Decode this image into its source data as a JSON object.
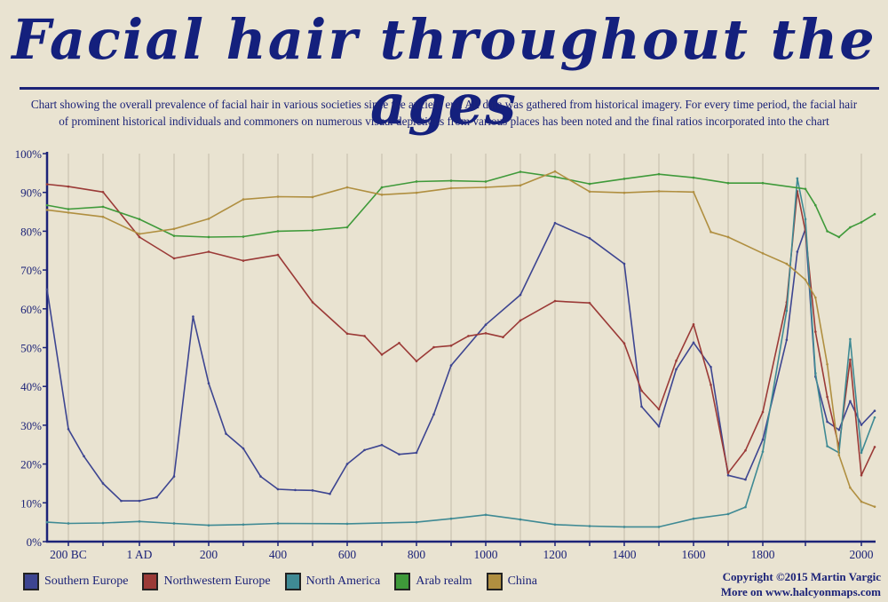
{
  "chart_data": {
    "type": "line",
    "title": "Facial hair throughout the ages",
    "subtitle": "Chart showing the overall prevalence of facial hair in various societies since the ancient era. All data was gathered from historical imagery. For every time period, the facial hair of prominent historical individuals and commoners on numerous visual depictions from various places has been noted and the final ratios incorporated into the chart",
    "xlabel": "",
    "ylabel": "",
    "ylim": [
      0,
      100
    ],
    "xlim": [
      -250,
      2020
    ],
    "grid": true,
    "legend_position": "bottom-left",
    "y_ticks": [
      "0%",
      "10%",
      "20%",
      "30%",
      "40%",
      "50%",
      "60%",
      "70%",
      "80%",
      "90%",
      "100%"
    ],
    "x_ticks": [
      {
        "value": -200,
        "label": "200 BC"
      },
      {
        "value": 0,
        "label": "1 AD"
      },
      {
        "value": 200,
        "label": "200"
      },
      {
        "value": 400,
        "label": "400"
      },
      {
        "value": 600,
        "label": "600"
      },
      {
        "value": 800,
        "label": "800"
      },
      {
        "value": 1000,
        "label": "1000"
      },
      {
        "value": 1200,
        "label": "1200"
      },
      {
        "value": 1400,
        "label": "1400"
      },
      {
        "value": 1600,
        "label": "1600"
      },
      {
        "value": 1800,
        "label": "1800"
      },
      {
        "value": 2000,
        "label": "2000"
      }
    ],
    "series": [
      {
        "name": "Southern Europe",
        "color": "#3d4591",
        "x": [
          -250,
          -200,
          -155,
          -100,
          -50,
          0,
          50,
          100,
          155,
          200,
          250,
          300,
          350,
          400,
          450,
          500,
          550,
          600,
          650,
          700,
          750,
          800,
          850,
          900,
          1000,
          1100,
          1200,
          1300,
          1400,
          1450,
          1500,
          1550,
          1600,
          1650,
          1700,
          1750,
          1800,
          1856,
          1881,
          1900,
          1918,
          1939,
          1960,
          1980,
          2000,
          2020
        ],
        "y": [
          65,
          29,
          22,
          15,
          10.5,
          10.5,
          11.4,
          16.8,
          58,
          40.8,
          27.8,
          24,
          16.8,
          13.5,
          13.3,
          13.2,
          12.3,
          20,
          23.6,
          24.9,
          22.5,
          22.9,
          32.8,
          45.4,
          55.9,
          63.6,
          82.1,
          78.2,
          71.6,
          34.8,
          29.7,
          44.4,
          51.3,
          45,
          17.1,
          16,
          26.3,
          52,
          74.7,
          80.6,
          42.5,
          30.9,
          28.8,
          36.2,
          30.1,
          33.7
        ]
      },
      {
        "name": "Northwestern Europe",
        "color": "#9b3a37",
        "x": [
          -250,
          -200,
          -100,
          0,
          100,
          200,
          300,
          400,
          500,
          600,
          650,
          700,
          750,
          800,
          850,
          900,
          950,
          1000,
          1050,
          1100,
          1200,
          1300,
          1400,
          1450,
          1500,
          1550,
          1600,
          1650,
          1700,
          1750,
          1800,
          1856,
          1881,
          1900,
          1918,
          1939,
          1960,
          1980,
          2000,
          2020
        ],
        "y": [
          92.1,
          91.5,
          90.1,
          78.5,
          73,
          74.7,
          72.4,
          73.9,
          61.7,
          53.6,
          53,
          48.2,
          51.2,
          46.5,
          50.1,
          50.5,
          53,
          53.7,
          52.7,
          57,
          62,
          61.5,
          51.1,
          38.9,
          34.1,
          46.6,
          56,
          40.4,
          17.7,
          23.5,
          33.4,
          61.7,
          90.3,
          80,
          54.1,
          37.3,
          24.4,
          46.9,
          17.1,
          24.4
        ]
      },
      {
        "name": "North America",
        "color": "#3f8a94",
        "x": [
          -250,
          -200,
          -100,
          0,
          100,
          200,
          300,
          400,
          600,
          800,
          900,
          1000,
          1100,
          1200,
          1300,
          1400,
          1500,
          1600,
          1700,
          1750,
          1800,
          1856,
          1881,
          1900,
          1918,
          1939,
          1960,
          1980,
          2000,
          2020
        ],
        "y": [
          5,
          4.7,
          4.8,
          5.2,
          4.7,
          4.2,
          4.4,
          4.7,
          4.6,
          5,
          5.9,
          6.9,
          5.7,
          4.4,
          4,
          3.8,
          3.8,
          5.9,
          7.1,
          8.9,
          23.2,
          59.5,
          93.6,
          83.1,
          43.4,
          24.6,
          22.9,
          52.2,
          22.9,
          32
        ]
      },
      {
        "name": "Arab realm",
        "color": "#3f9a3a",
        "x": [
          -250,
          -200,
          -100,
          0,
          100,
          200,
          300,
          400,
          500,
          600,
          700,
          800,
          900,
          1000,
          1100,
          1200,
          1300,
          1400,
          1500,
          1600,
          1700,
          1800,
          1900,
          1918,
          1939,
          1960,
          1980,
          2000,
          2020
        ],
        "y": [
          86.7,
          85.7,
          86.3,
          83.1,
          78.8,
          78.5,
          78.6,
          80,
          80.2,
          81,
          91.3,
          92.8,
          93,
          92.8,
          95.3,
          94,
          92.2,
          93.5,
          94.7,
          93.8,
          92.4,
          92.4,
          90.9,
          86.7,
          80,
          78.5,
          81,
          82.3,
          84.4
        ]
      },
      {
        "name": "China",
        "color": "#b08f40",
        "x": [
          -250,
          -200,
          -100,
          0,
          100,
          200,
          300,
          400,
          500,
          600,
          700,
          800,
          900,
          1000,
          1100,
          1200,
          1300,
          1400,
          1500,
          1600,
          1650,
          1700,
          1800,
          1856,
          1900,
          1918,
          1939,
          1960,
          1980,
          2000,
          2020
        ],
        "y": [
          85.5,
          84.8,
          83.7,
          79.3,
          80.6,
          83.2,
          88.2,
          88.9,
          88.8,
          91.3,
          89.4,
          89.9,
          91.1,
          91.3,
          91.8,
          95.4,
          90.2,
          89.9,
          90.3,
          90.1,
          79.8,
          78.5,
          74.3,
          71.6,
          67.5,
          62.9,
          45.7,
          22.3,
          13.9,
          10.3,
          9
        ]
      }
    ]
  },
  "footer": {
    "copyright": "Copyright ©2015 Martin Vargic",
    "more": "More on www.halcyonmaps.com"
  }
}
